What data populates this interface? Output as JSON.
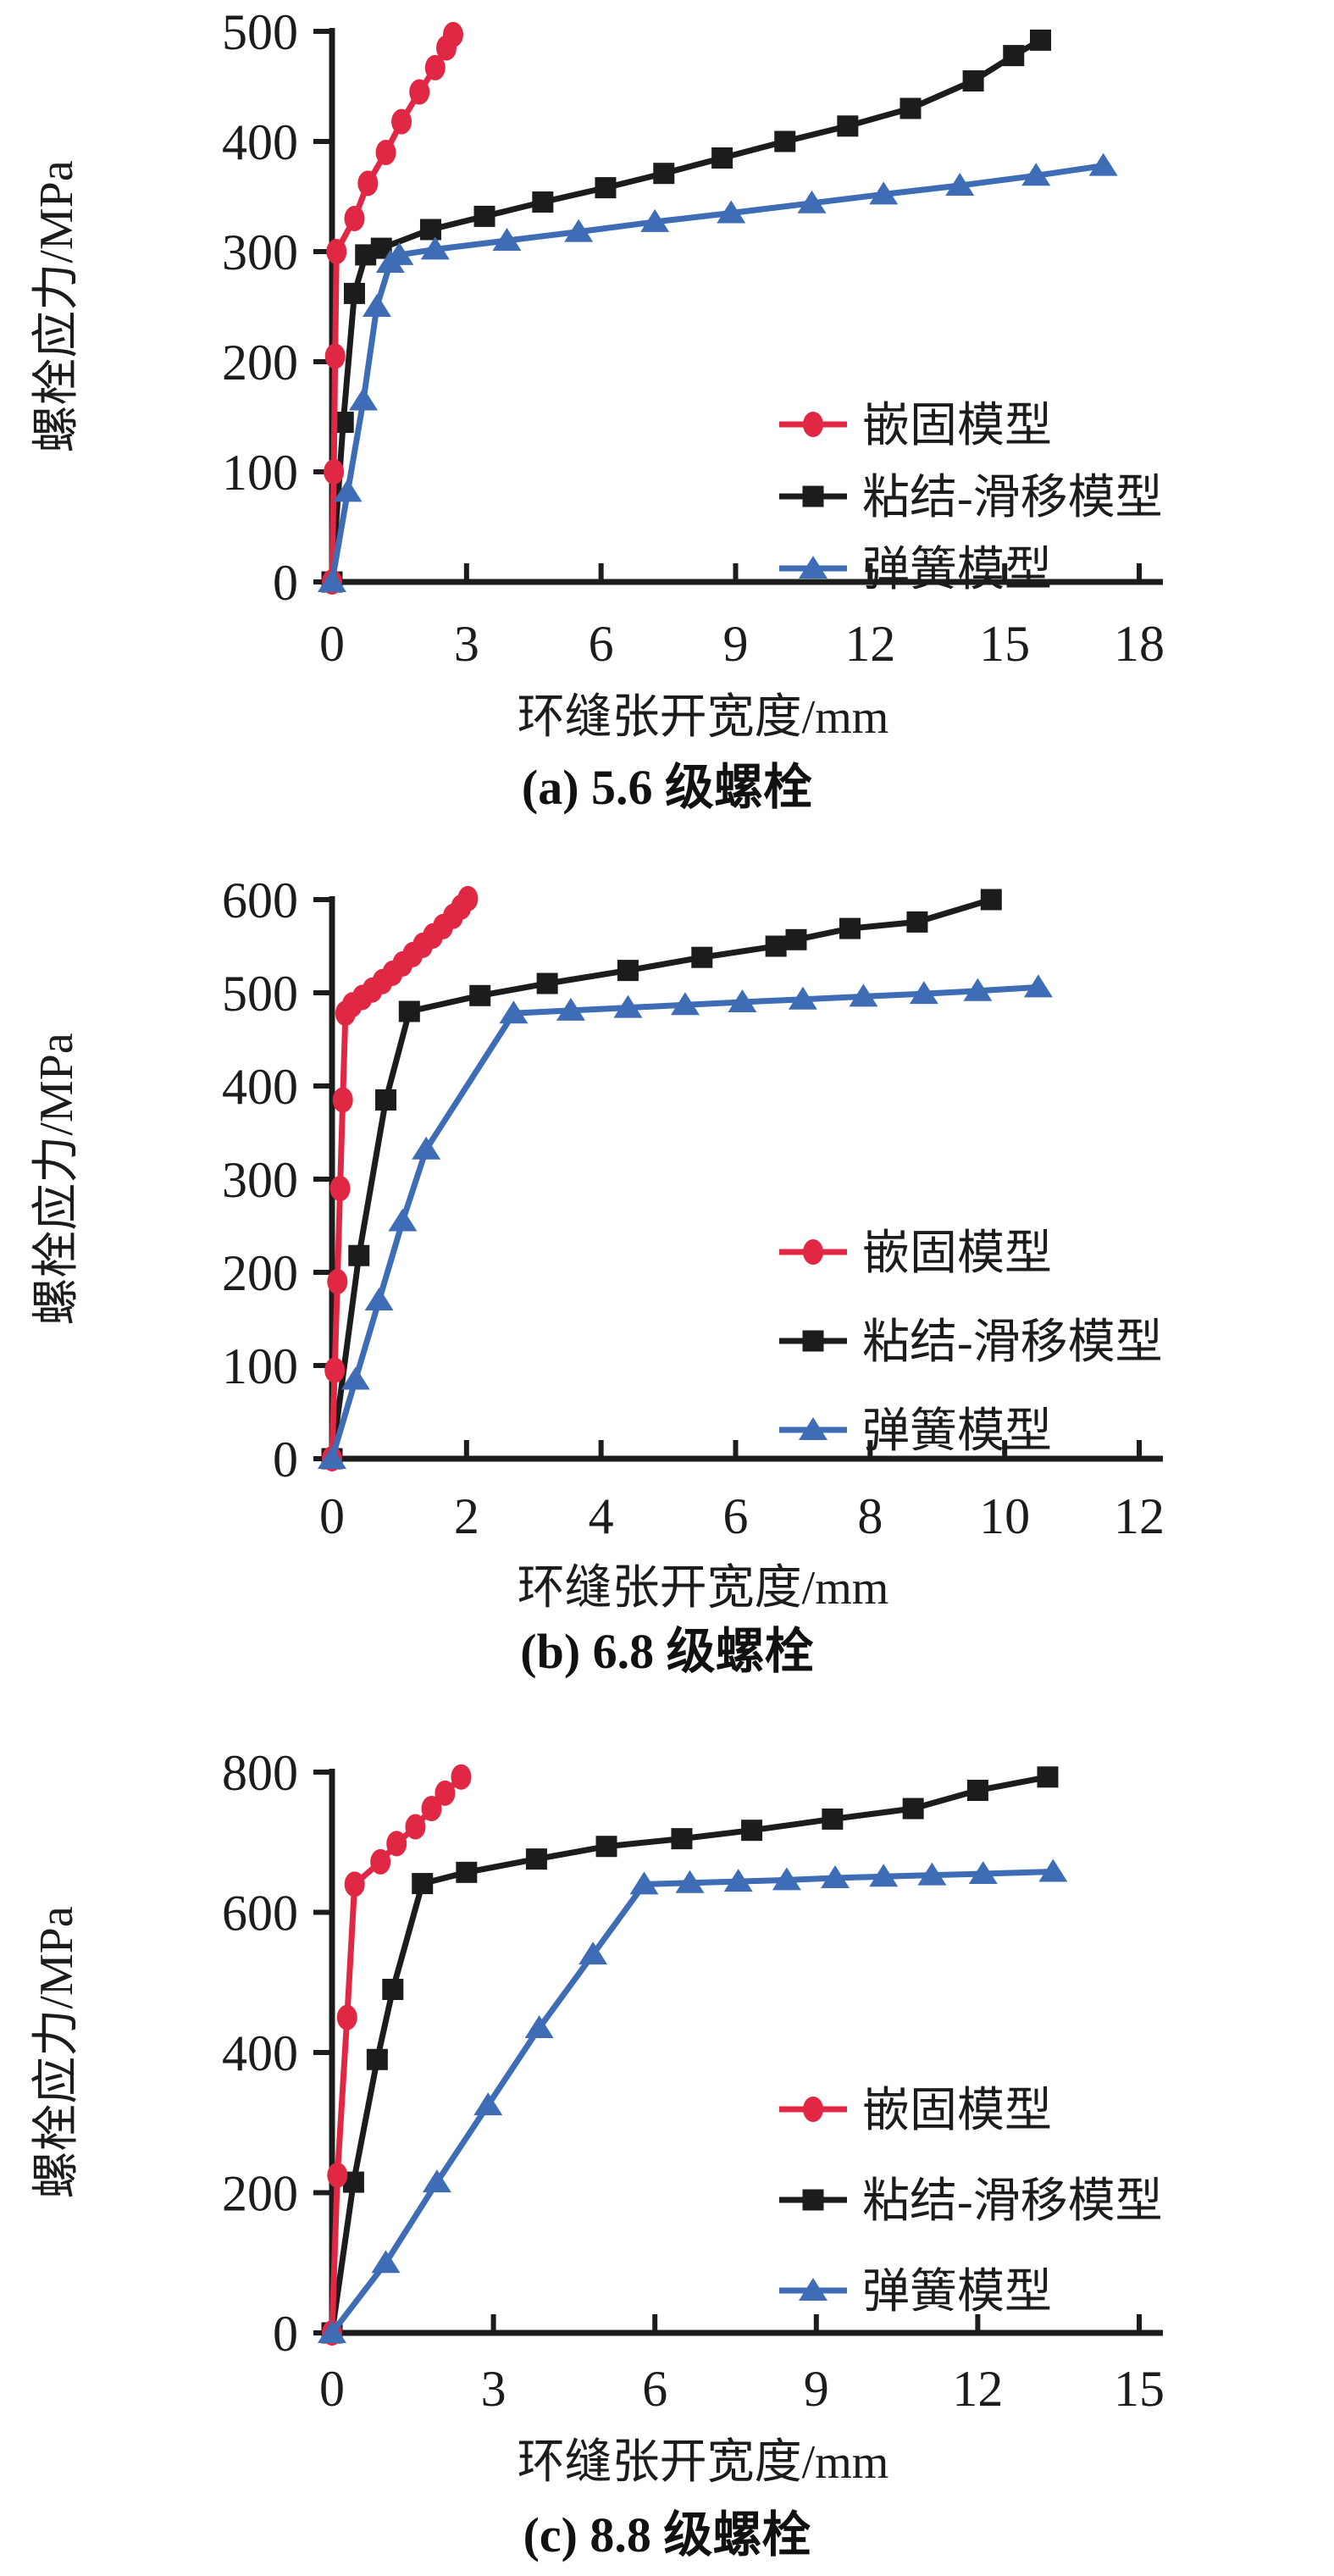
{
  "figure": {
    "xlabel": "环缝张开宽度/mm",
    "ylabel": "螺栓应力/MPa",
    "legend": [
      "嵌固模型",
      "粘结-滑移模型",
      "弹簧模型"
    ],
    "colors": {
      "embedded_model": "#e02744",
      "bond_slip_model": "#1c1c1c",
      "spring_model": "#3e6cb5",
      "axis": "#1c1c1c",
      "background": "#ffffff"
    },
    "marker_shapes": {
      "嵌固模型": "circle",
      "粘结-滑移模型": "square",
      "弹簧模型": "triangle"
    }
  },
  "chart_data": [
    {
      "type": "line",
      "title": "(a) 5.6 级螺栓",
      "xlabel": "环缝张开宽度/mm",
      "ylabel": "螺栓应力/MPa",
      "xlim": [
        0,
        18
      ],
      "ylim": [
        0,
        500
      ],
      "xticks": [
        0,
        3,
        6,
        9,
        12,
        15,
        18
      ],
      "yticks": [
        0,
        100,
        200,
        300,
        400,
        500
      ],
      "grid": false,
      "legend_position": "lower right",
      "series": [
        {
          "name": "嵌固模型",
          "color": "#e02744",
          "marker": "circle",
          "x": [
            0,
            0.04,
            0.07,
            0.1,
            0.5,
            0.8,
            1.2,
            1.55,
            1.95,
            2.3,
            2.55,
            2.7
          ],
          "y": [
            0,
            100,
            205,
            300,
            330,
            362,
            390,
            418,
            445,
            467,
            485,
            497
          ]
        },
        {
          "name": "粘结-滑移模型",
          "color": "#1c1c1c",
          "marker": "square",
          "x": [
            0,
            0.25,
            0.5,
            0.75,
            1.1,
            2.2,
            3.4,
            4.7,
            6.1,
            7.4,
            8.7,
            10.1,
            11.5,
            12.9,
            14.3,
            15.2,
            15.8
          ],
          "y": [
            0,
            145,
            262,
            297,
            303,
            320,
            332,
            345,
            358,
            371,
            385,
            400,
            414,
            430,
            455,
            478,
            492
          ]
        },
        {
          "name": "弹簧模型",
          "color": "#3e6cb5",
          "marker": "triangle",
          "x": [
            0,
            0.35,
            0.7,
            1.0,
            1.3,
            1.5,
            2.3,
            3.9,
            5.5,
            7.2,
            8.9,
            10.7,
            12.3,
            14.0,
            15.7,
            17.2
          ],
          "y": [
            0,
            82,
            165,
            250,
            290,
            297,
            302,
            310,
            318,
            327,
            335,
            344,
            352,
            360,
            369,
            378
          ]
        }
      ]
    },
    {
      "type": "line",
      "title": "(b) 6.8 级螺栓",
      "xlabel": "环缝张开宽度/mm",
      "ylabel": "螺栓应力/MPa",
      "xlim": [
        0,
        12
      ],
      "ylim": [
        0,
        600
      ],
      "xticks": [
        0,
        2,
        4,
        6,
        8,
        10,
        12
      ],
      "yticks": [
        0,
        100,
        200,
        300,
        400,
        500,
        600
      ],
      "grid": false,
      "legend_position": "lower right",
      "series": [
        {
          "name": "嵌固模型",
          "color": "#e02744",
          "marker": "circle",
          "x": [
            0,
            0.04,
            0.08,
            0.12,
            0.16,
            0.2,
            0.3,
            0.45,
            0.6,
            0.75,
            0.9,
            1.05,
            1.2,
            1.35,
            1.5,
            1.65,
            1.8,
            1.92,
            2.02
          ],
          "y": [
            0,
            95,
            190,
            290,
            385,
            478,
            487,
            495,
            503,
            512,
            521,
            531,
            541,
            551,
            561,
            571,
            582,
            592,
            601
          ]
        },
        {
          "name": "粘结-滑移模型",
          "color": "#1c1c1c",
          "marker": "square",
          "x": [
            0,
            0.4,
            0.8,
            1.15,
            2.2,
            3.2,
            4.4,
            5.5,
            6.6,
            6.9,
            7.7,
            8.7,
            9.8
          ],
          "y": [
            0,
            218,
            385,
            480,
            497,
            510,
            524,
            538,
            550,
            557,
            569,
            576,
            600
          ]
        },
        {
          "name": "弹簧模型",
          "color": "#3e6cb5",
          "marker": "triangle",
          "x": [
            0,
            0.35,
            0.7,
            1.05,
            1.4,
            2.7,
            3.55,
            4.4,
            5.25,
            6.1,
            7.0,
            7.9,
            8.8,
            9.6,
            10.5
          ],
          "y": [
            0,
            85,
            170,
            255,
            332,
            478,
            481,
            484,
            487,
            490,
            493,
            496,
            499,
            502,
            506
          ]
        }
      ]
    },
    {
      "type": "line",
      "title": "(c) 8.8 级螺栓",
      "xlabel": "环缝张开宽度/mm",
      "ylabel": "螺栓应力/MPa",
      "xlim": [
        0,
        15
      ],
      "ylim": [
        0,
        800
      ],
      "xticks": [
        0,
        3,
        6,
        9,
        12,
        15
      ],
      "yticks": [
        0,
        200,
        400,
        600,
        800
      ],
      "grid": false,
      "legend_position": "lower right",
      "series": [
        {
          "name": "嵌固模型",
          "color": "#e02744",
          "marker": "circle",
          "x": [
            0,
            0.1,
            0.28,
            0.42,
            0.9,
            1.2,
            1.55,
            1.85,
            2.1,
            2.4
          ],
          "y": [
            0,
            225,
            450,
            640,
            672,
            698,
            722,
            748,
            770,
            793
          ]
        },
        {
          "name": "粘结-滑移模型",
          "color": "#1c1c1c",
          "marker": "square",
          "x": [
            0,
            0.4,
            0.84,
            1.13,
            1.68,
            2.5,
            3.8,
            5.1,
            6.5,
            7.8,
            9.3,
            10.8,
            12.0,
            13.3
          ],
          "y": [
            0,
            215,
            390,
            490,
            641,
            657,
            676,
            694,
            705,
            717,
            733,
            748,
            774,
            793
          ]
        },
        {
          "name": "弹簧模型",
          "color": "#3e6cb5",
          "marker": "triangle",
          "x": [
            0,
            1.0,
            1.95,
            2.9,
            3.85,
            4.85,
            5.8,
            6.65,
            7.55,
            8.45,
            9.35,
            10.25,
            11.15,
            12.1,
            13.4
          ],
          "y": [
            0,
            100,
            215,
            325,
            435,
            540,
            640,
            642,
            644,
            646,
            649,
            651,
            653,
            655,
            658
          ]
        }
      ]
    }
  ]
}
